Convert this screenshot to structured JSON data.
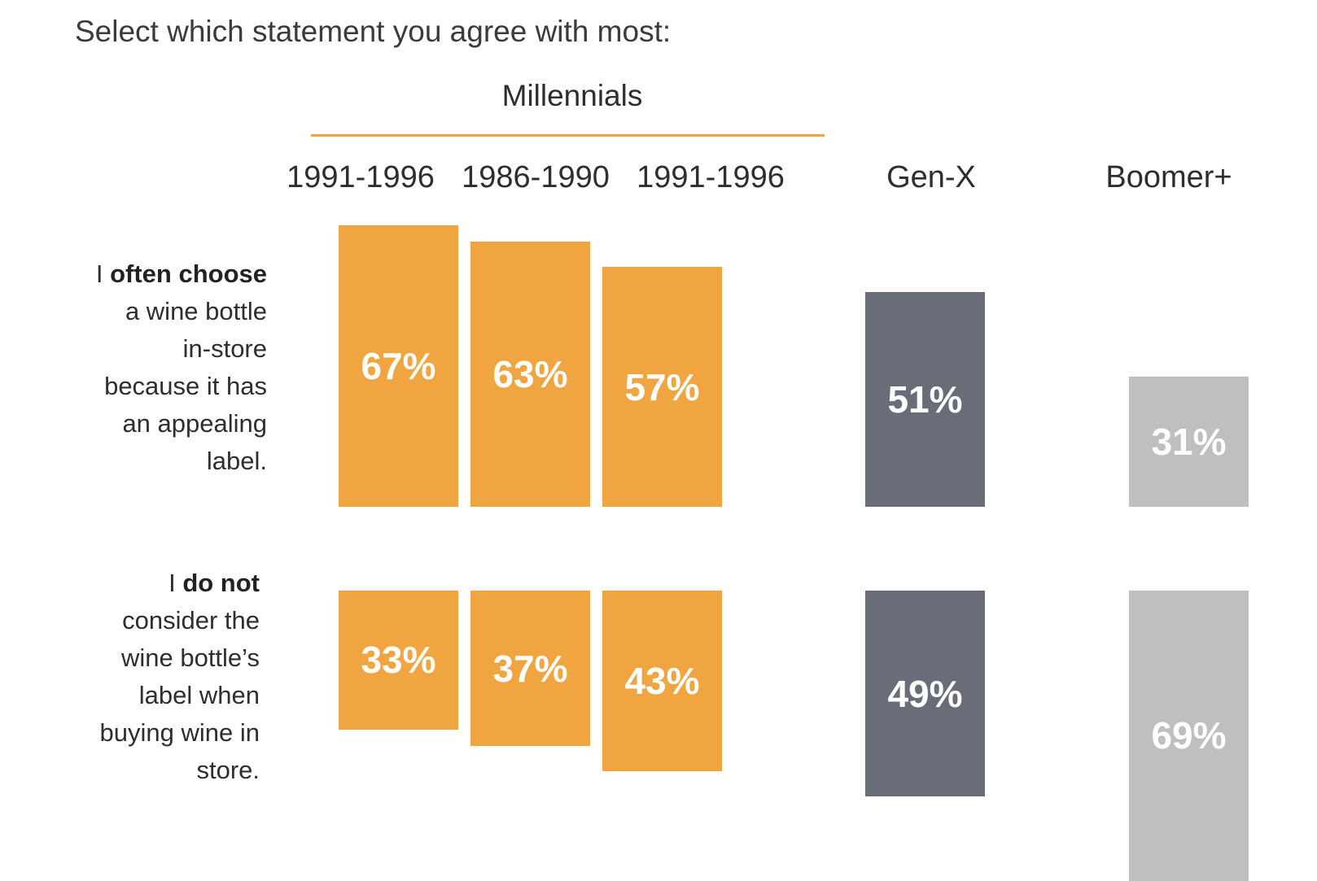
{
  "question": "Select which statement you agree with most:",
  "colors": {
    "millennials": "#F0A540",
    "genx": "#696D78",
    "boomer": "#BFBFBF",
    "rule": "#F0A540"
  },
  "chart_data": {
    "type": "bar",
    "title": "Select which statement you agree with most:",
    "group_title": "Millennials",
    "categories": [
      "1991-1996",
      "1986-1990",
      "1991-1996",
      "Gen-X",
      "Boomer+"
    ],
    "rows": [
      {
        "label_prefix": "I ",
        "label_bold": "often choose",
        "label_rest": "a wine bottle in-store because it has an appealing label.",
        "values": [
          67,
          63,
          57,
          51,
          31
        ],
        "data_labels": [
          "67%",
          "63%",
          "57%",
          "51%",
          "31%"
        ]
      },
      {
        "label_prefix": "I ",
        "label_bold": "do not",
        "label_rest": "consider the wine bottle’s label when buying wine in store.",
        "values": [
          33,
          37,
          43,
          49,
          69
        ],
        "data_labels": [
          "33%",
          "37%",
          "43%",
          "49%",
          "69%"
        ]
      }
    ],
    "series_colors": [
      "millennials",
      "millennials",
      "millennials",
      "genx",
      "boomer"
    ],
    "ylim": [
      0,
      100
    ],
    "legend": "none",
    "grid": false
  }
}
